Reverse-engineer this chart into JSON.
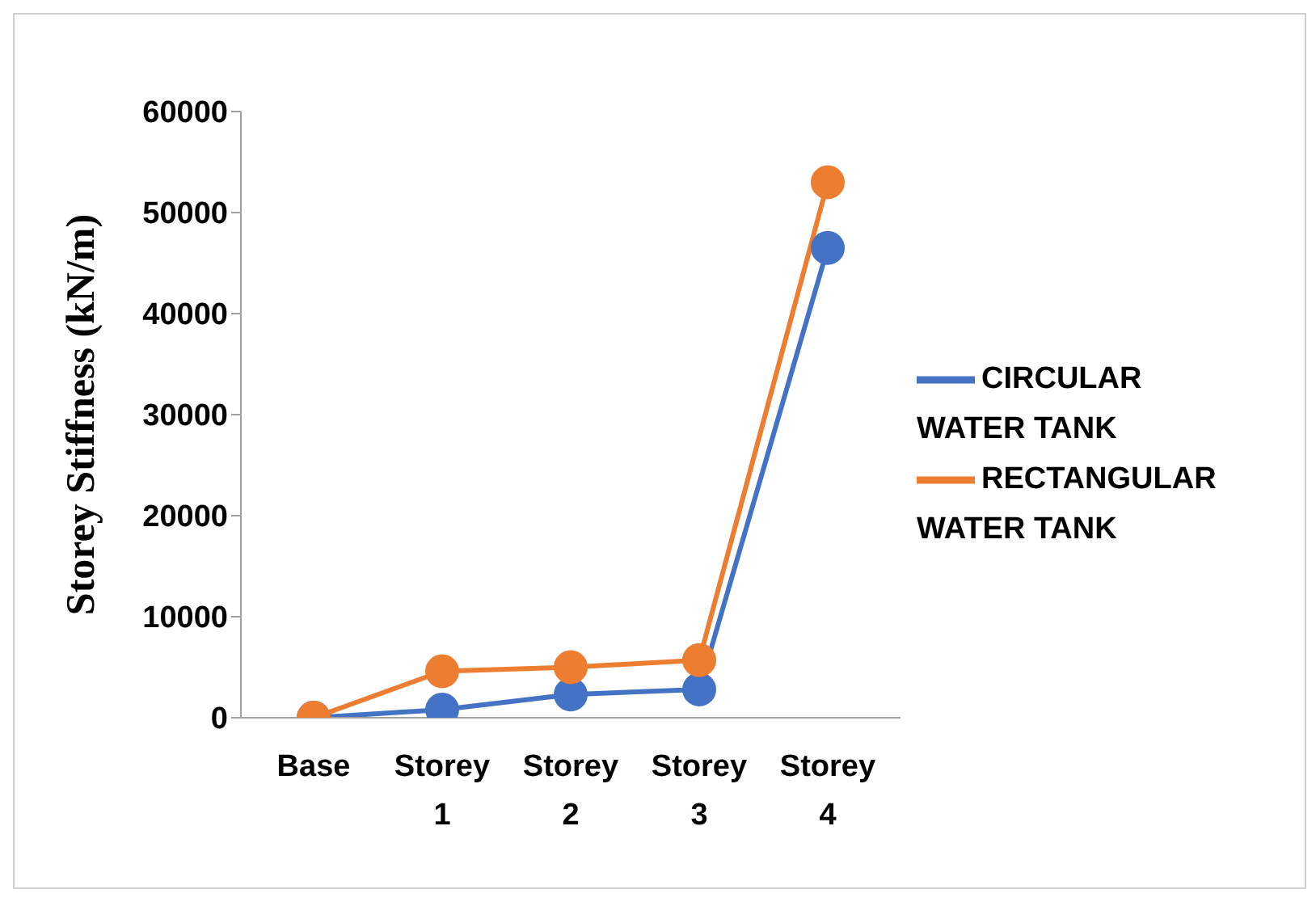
{
  "chart_data": {
    "type": "line",
    "ylabel": "Storey Stiffness (kN/m)",
    "categories": [
      "Base",
      "Storey 1",
      "Storey 2",
      "Storey 3",
      "Storey 4"
    ],
    "series": [
      {
        "name": "CIRCULAR WATER TANK",
        "color": "#4472c4",
        "values": [
          0,
          800,
          2300,
          2800,
          46500
        ]
      },
      {
        "name": "RECTANGULAR WATER TANK",
        "color": "#ed7d31",
        "values": [
          0,
          4600,
          5000,
          5700,
          53000
        ]
      }
    ],
    "ylim": [
      0,
      60000
    ],
    "yticks": [
      0,
      10000,
      20000,
      30000,
      40000,
      50000,
      60000
    ],
    "grid": false,
    "legend": "right",
    "marker": "circle",
    "line_style": "solid"
  }
}
